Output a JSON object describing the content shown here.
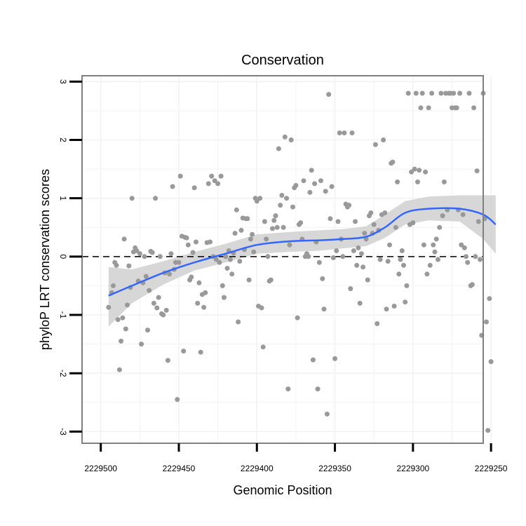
{
  "chart_data": {
    "type": "scatter",
    "title": "Conservation",
    "xlabel": "Genomic Position",
    "ylabel": "phyloP LRT conservation scores",
    "x_reversed": true,
    "xlim": [
      2229255,
      2229512
    ],
    "ylim": [
      -3.2,
      3.1
    ],
    "x_ticks": [
      2229500,
      2229450,
      2229400,
      2229350,
      2229300,
      2229250
    ],
    "x_tick_labels": [
      "2229500",
      "2229450",
      "2229400",
      "2229350",
      "2229300",
      "2229250"
    ],
    "y_ticks": [
      -3,
      -2,
      -1,
      0,
      1,
      2,
      3
    ],
    "y_tick_labels": [
      "-3",
      "-2",
      "-1",
      "0",
      "1",
      "2",
      "3"
    ],
    "reference_line_y": 0,
    "grid": true,
    "colors": {
      "points": "#999999",
      "smooth_line": "#3366ff",
      "confidence_band": "#d3d3d3",
      "panel_border": "#808080",
      "grid": "#f2f2f2",
      "reference_line": "#000000"
    },
    "points": [
      [
        2229495,
        -0.87
      ],
      [
        2229493,
        -0.62
      ],
      [
        2229492,
        -0.5
      ],
      [
        2229491,
        -0.1
      ],
      [
        2229490,
        -0.15
      ],
      [
        2229489,
        -1.08
      ],
      [
        2229488,
        -1.94
      ],
      [
        2229487,
        -1.45
      ],
      [
        2229486,
        -1.05
      ],
      [
        2229485,
        0.3
      ],
      [
        2229484,
        -1.24
      ],
      [
        2229483,
        -0.83
      ],
      [
        2229482,
        -0.16
      ],
      [
        2229481,
        -0.53
      ],
      [
        2229480,
        1.0
      ],
      [
        2229479,
        0.08
      ],
      [
        2229478,
        0.15
      ],
      [
        2229477,
        0.1
      ],
      [
        2229476,
        -0.42
      ],
      [
        2229475,
        0.05
      ],
      [
        2229474,
        -1.5
      ],
      [
        2229473,
        -0.45
      ],
      [
        2229472,
        0.0
      ],
      [
        2229471,
        -0.34
      ],
      [
        2229470,
        -1.26
      ],
      [
        2229469,
        -0.58
      ],
      [
        2229468,
        0.09
      ],
      [
        2229467,
        0.07
      ],
      [
        2229466,
        -0.8
      ],
      [
        2229465,
        1.0
      ],
      [
        2229464,
        -0.88
      ],
      [
        2229463,
        -0.7
      ],
      [
        2229462,
        0.0
      ],
      [
        2229461,
        -0.98
      ],
      [
        2229460,
        -1.0
      ],
      [
        2229459,
        -0.28
      ],
      [
        2229458,
        -0.92
      ],
      [
        2229457,
        -1.78
      ],
      [
        2229456,
        -0.3
      ],
      [
        2229455,
        0.05
      ],
      [
        2229454,
        1.2
      ],
      [
        2229453,
        -0.22
      ],
      [
        2229452,
        -0.1
      ],
      [
        2229451,
        -2.45
      ],
      [
        2229450,
        -0.1
      ],
      [
        2229449,
        1.38
      ],
      [
        2229448,
        0.35
      ],
      [
        2229447,
        -1.62
      ],
      [
        2229446,
        0.33
      ],
      [
        2229445,
        0.32
      ],
      [
        2229444,
        0.2
      ],
      [
        2229443,
        -0.4
      ],
      [
        2229442,
        -0.35
      ],
      [
        2229441,
        0.07
      ],
      [
        2229440,
        1.18
      ],
      [
        2229439,
        0.25
      ],
      [
        2229438,
        -0.8
      ],
      [
        2229437,
        -0.45
      ],
      [
        2229436,
        -1.64
      ],
      [
        2229435,
        -0.65
      ],
      [
        2229434,
        -0.87
      ],
      [
        2229433,
        -0.62
      ],
      [
        2229432,
        0.24
      ],
      [
        2229431,
        1.25
      ],
      [
        2229430,
        0.25
      ],
      [
        2229429,
        1.38
      ],
      [
        2229428,
        0.0
      ],
      [
        2229427,
        1.3
      ],
      [
        2229426,
        -0.05
      ],
      [
        2229425,
        1.25
      ],
      [
        2229424,
        -0.1
      ],
      [
        2229423,
        1.38
      ],
      [
        2229422,
        -0.5
      ],
      [
        2229421,
        -0.7
      ],
      [
        2229420,
        0.0
      ],
      [
        2229419,
        -0.2
      ],
      [
        2229418,
        0.1
      ],
      [
        2229417,
        -0.05
      ],
      [
        2229416,
        -0.3
      ],
      [
        2229415,
        0.06
      ],
      [
        2229414,
        0.4
      ],
      [
        2229413,
        0.8
      ],
      [
        2229412,
        -1.12
      ],
      [
        2229411,
        -0.08
      ],
      [
        2229410,
        0.45
      ],
      [
        2229409,
        0.66
      ],
      [
        2229408,
        0.12
      ],
      [
        2229407,
        0.65
      ],
      [
        2229406,
        0.65
      ],
      [
        2229405,
        -0.4
      ],
      [
        2229404,
        0.3
      ],
      [
        2229403,
        0.38
      ],
      [
        2229402,
        0.08
      ],
      [
        2229401,
        1.0
      ],
      [
        2229400,
        0.95
      ],
      [
        2229399,
        -0.85
      ],
      [
        2229398,
        1.0
      ],
      [
        2229397,
        -0.88
      ],
      [
        2229396,
        -1.55
      ],
      [
        2229395,
        0.6
      ],
      [
        2229394,
        0.3
      ],
      [
        2229393,
        0.0
      ],
      [
        2229392,
        -0.42
      ],
      [
        2229391,
        -0.4
      ],
      [
        2229390,
        0.48
      ],
      [
        2229389,
        0.62
      ],
      [
        2229388,
        0.7
      ],
      [
        2229387,
        0.5
      ],
      [
        2229386,
        1.85
      ],
      [
        2229385,
        0.88
      ],
      [
        2229384,
        1.05
      ],
      [
        2229383,
        0.5
      ],
      [
        2229382,
        2.05
      ],
      [
        2229381,
        1.0
      ],
      [
        2229380,
        -2.27
      ],
      [
        2229379,
        0.2
      ],
      [
        2229378,
        2.0
      ],
      [
        2229377,
        0.85
      ],
      [
        2229376,
        1.18
      ],
      [
        2229375,
        1.22
      ],
      [
        2229374,
        -1.05
      ],
      [
        2229373,
        0.55
      ],
      [
        2229372,
        0.58
      ],
      [
        2229371,
        0.3
      ],
      [
        2229370,
        1.3
      ],
      [
        2229369,
        0.0
      ],
      [
        2229368,
        0.05
      ],
      [
        2229367,
        0.0
      ],
      [
        2229366,
        1.1
      ],
      [
        2229365,
        1.48
      ],
      [
        2229364,
        -1.77
      ],
      [
        2229363,
        1.25
      ],
      [
        2229362,
        0.25
      ],
      [
        2229361,
        -2.27
      ],
      [
        2229360,
        -0.1
      ],
      [
        2229359,
        1.3
      ],
      [
        2229358,
        -0.38
      ],
      [
        2229357,
        -0.9
      ],
      [
        2229356,
        1.12
      ],
      [
        2229355,
        -2.7
      ],
      [
        2229354,
        2.78
      ],
      [
        2229353,
        0.65
      ],
      [
        2229352,
        1.2
      ],
      [
        2229351,
        -0.02
      ],
      [
        2229350,
        -1.75
      ],
      [
        2229349,
        0.1
      ],
      [
        2229348,
        0.6
      ],
      [
        2229347,
        2.12
      ],
      [
        2229346,
        0.3
      ],
      [
        2229345,
        0.0
      ],
      [
        2229344,
        2.12
      ],
      [
        2229343,
        0.9
      ],
      [
        2229342,
        0.85
      ],
      [
        2229341,
        0.88
      ],
      [
        2229340,
        -0.55
      ],
      [
        2229339,
        2.12
      ],
      [
        2229338,
        0.1
      ],
      [
        2229337,
        0.6
      ],
      [
        2229336,
        -0.15
      ],
      [
        2229335,
        0.15
      ],
      [
        2229334,
        -0.8
      ],
      [
        2229333,
        0.05
      ],
      [
        2229332,
        -0.18
      ],
      [
        2229331,
        0.4
      ],
      [
        2229330,
        0.3
      ],
      [
        2229329,
        -0.4
      ],
      [
        2229328,
        0.7
      ],
      [
        2229327,
        0.75
      ],
      [
        2229326,
        0.4
      ],
      [
        2229325,
        0.55
      ],
      [
        2229324,
        1.92
      ],
      [
        2229323,
        -1.15
      ],
      [
        2229322,
        0.45
      ],
      [
        2229321,
        -0.05
      ],
      [
        2229320,
        0.72
      ],
      [
        2229319,
        2.0
      ],
      [
        2229318,
        0.75
      ],
      [
        2229317,
        -0.9
      ],
      [
        2229316,
        -0.08
      ],
      [
        2229315,
        0.2
      ],
      [
        2229314,
        1.6
      ],
      [
        2229313,
        1.62
      ],
      [
        2229312,
        -0.85
      ],
      [
        2229311,
        0.5
      ],
      [
        2229310,
        1.28
      ],
      [
        2229309,
        -0.3
      ],
      [
        2229308,
        -0.05
      ],
      [
        2229307,
        0.1
      ],
      [
        2229306,
        -0.15
      ],
      [
        2229305,
        -0.78
      ],
      [
        2229304,
        -0.5
      ],
      [
        2229303,
        2.8
      ],
      [
        2229302,
        0.55
      ],
      [
        2229301,
        1.45
      ],
      [
        2229300,
        0.58
      ],
      [
        2229299,
        1.5
      ],
      [
        2229298,
        2.8
      ],
      [
        2229297,
        1.28
      ],
      [
        2229296,
        1.48
      ],
      [
        2229295,
        2.55
      ],
      [
        2229294,
        2.8
      ],
      [
        2229293,
        0.2
      ],
      [
        2229292,
        1.45
      ],
      [
        2229291,
        -0.3
      ],
      [
        2229290,
        2.55
      ],
      [
        2229289,
        -0.15
      ],
      [
        2229288,
        2.8
      ],
      [
        2229287,
        0.2
      ],
      [
        2229286,
        0.08
      ],
      [
        2229285,
        0.3
      ],
      [
        2229284,
        -0.05
      ],
      [
        2229283,
        0.5
      ],
      [
        2229282,
        2.8
      ],
      [
        2229281,
        0.7
      ],
      [
        2229280,
        1.28
      ],
      [
        2229279,
        2.8
      ],
      [
        2229278,
        0.8
      ],
      [
        2229277,
        2.8
      ],
      [
        2229276,
        2.8
      ],
      [
        2229275,
        2.55
      ],
      [
        2229274,
        2.8
      ],
      [
        2229273,
        2.55
      ],
      [
        2229272,
        2.55
      ],
      [
        2229271,
        0.8
      ],
      [
        2229270,
        2.8
      ],
      [
        2229269,
        0.2
      ],
      [
        2229268,
        0.72
      ],
      [
        2229267,
        0.15
      ],
      [
        2229266,
        0.0
      ],
      [
        2229265,
        -0.1
      ],
      [
        2229264,
        2.8
      ],
      [
        2229263,
        -0.5
      ],
      [
        2229262,
        -0.48
      ],
      [
        2229261,
        2.55
      ],
      [
        2229260,
        0.0
      ],
      [
        2229259,
        1.47
      ],
      [
        2229258,
        0.6
      ],
      [
        2229257,
        -0.05
      ],
      [
        2229256,
        -1.35
      ],
      [
        2229255,
        2.8
      ],
      [
        2229254,
        0.65
      ],
      [
        2229253,
        -1.12
      ],
      [
        2229252,
        -2.98
      ],
      [
        2229251,
        -0.72
      ],
      [
        2229250,
        -1.8
      ]
    ],
    "smooth_line": [
      [
        2229495,
        -0.67
      ],
      [
        2229480,
        -0.5
      ],
      [
        2229460,
        -0.28
      ],
      [
        2229440,
        -0.1
      ],
      [
        2229420,
        0.05
      ],
      [
        2229400,
        0.2
      ],
      [
        2229380,
        0.26
      ],
      [
        2229360,
        0.28
      ],
      [
        2229345,
        0.3
      ],
      [
        2229330,
        0.34
      ],
      [
        2229318,
        0.5
      ],
      [
        2229305,
        0.75
      ],
      [
        2229290,
        0.82
      ],
      [
        2229270,
        0.82
      ],
      [
        2229255,
        0.72
      ],
      [
        2229247,
        0.55
      ]
    ],
    "confidence_band": [
      [
        2229495,
        -1.2,
        -0.18
      ],
      [
        2229480,
        -0.8,
        -0.22
      ],
      [
        2229460,
        -0.48,
        -0.08
      ],
      [
        2229440,
        -0.24,
        0.08
      ],
      [
        2229420,
        -0.1,
        0.22
      ],
      [
        2229400,
        0.05,
        0.38
      ],
      [
        2229380,
        0.08,
        0.42
      ],
      [
        2229360,
        0.1,
        0.45
      ],
      [
        2229345,
        0.14,
        0.47
      ],
      [
        2229330,
        0.18,
        0.52
      ],
      [
        2229318,
        0.32,
        0.72
      ],
      [
        2229305,
        0.55,
        0.95
      ],
      [
        2229290,
        0.62,
        1.03
      ],
      [
        2229270,
        0.6,
        1.05
      ],
      [
        2229255,
        0.3,
        1.05
      ],
      [
        2229247,
        0.05,
        1.05
      ]
    ]
  }
}
